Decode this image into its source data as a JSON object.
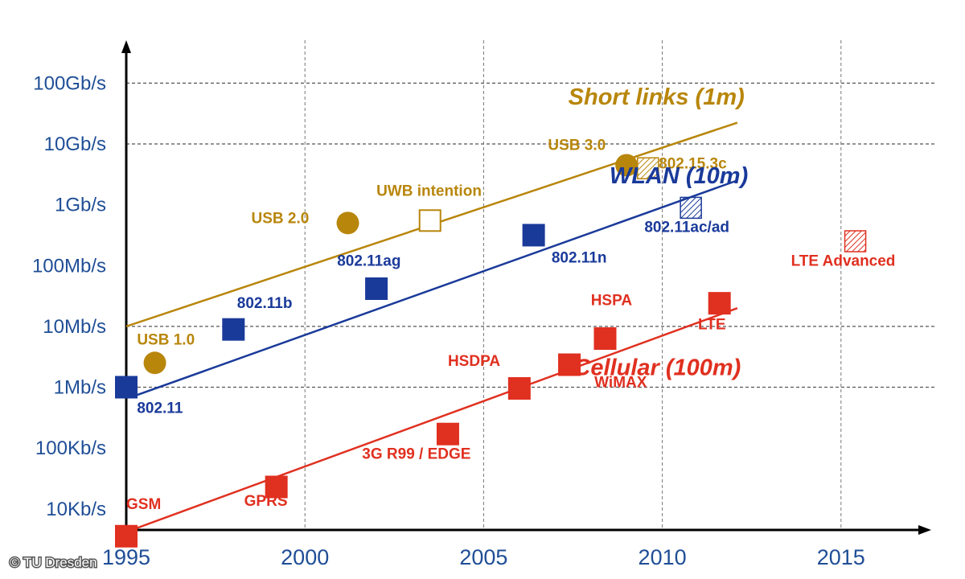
{
  "chart_data": {
    "type": "scatter",
    "title": "",
    "xlabel": "",
    "ylabel": "",
    "y_scale": "log10 (bit/s)",
    "xlim": [
      1995,
      2017.3
    ],
    "ylim": [
      3.6,
      11.6
    ],
    "x_ticks": [
      {
        "value": 1995,
        "label": "1995"
      },
      {
        "value": 2000,
        "label": "2000"
      },
      {
        "value": 2005,
        "label": "2005"
      },
      {
        "value": 2010,
        "label": "2010"
      },
      {
        "value": 2015,
        "label": "2015"
      }
    ],
    "y_ticks": [
      {
        "value": 4,
        "label": "10Kb/s"
      },
      {
        "value": 5,
        "label": "100Kb/s"
      },
      {
        "value": 6,
        "label": "1Mb/s"
      },
      {
        "value": 7,
        "label": "10Mb/s"
      },
      {
        "value": 8,
        "label": "100Mb/s"
      },
      {
        "value": 9,
        "label": "1Gb/s"
      },
      {
        "value": 10,
        "label": "10Gb/s"
      },
      {
        "value": 11,
        "label": "100Gb/s"
      }
    ],
    "h_dashed_at": [
      6,
      7,
      10,
      11
    ],
    "v_dashed_at": [
      2000,
      2005,
      2010,
      2015
    ],
    "series": [
      {
        "name": "Short links (1m)",
        "color": "#b8860b",
        "trend": {
          "x1": 1995,
          "y1": 7.0,
          "x2": 2012.1,
          "y2": 10.35
        },
        "label": {
          "x": 2012.3,
          "y": 10.65
        },
        "points": [
          {
            "x": 1995.8,
            "y": 6.4,
            "label": "USB 1.0",
            "marker": "circle",
            "lx": 1995.3,
            "ly": 6.7
          },
          {
            "x": 2001.2,
            "y": 8.7,
            "label": "USB 2.0",
            "marker": "circle",
            "lx": 1998.5,
            "ly": 8.7
          },
          {
            "x": 2003.5,
            "y": 8.74,
            "label": "UWB intention",
            "marker": "open-square",
            "lx": 2002.0,
            "ly": 9.15
          },
          {
            "x": 2009.0,
            "y": 9.65,
            "label": "USB 3.0",
            "marker": "circle",
            "lx": 2006.8,
            "ly": 9.9
          },
          {
            "x": 2009.6,
            "y": 9.6,
            "label": "802.15.3c",
            "marker": "hatched-square",
            "lx": 2009.9,
            "ly": 9.6
          }
        ]
      },
      {
        "name": "WLAN (10m)",
        "color": "#1a3a9a",
        "trend": {
          "x1": 1995.2,
          "y1": 5.85,
          "x2": 2012.1,
          "y2": 9.4
        },
        "label": {
          "x": 2012.4,
          "y": 9.35
        },
        "points": [
          {
            "x": 1995.0,
            "y": 6.0,
            "label": "802.11",
            "marker": "square",
            "lx": 1995.3,
            "ly": 5.58
          },
          {
            "x": 1998.0,
            "y": 6.95,
            "label": "802.11b",
            "marker": "square",
            "lx": 1998.1,
            "ly": 7.3
          },
          {
            "x": 2002.0,
            "y": 7.62,
            "label": "802.11ag",
            "marker": "square",
            "lx": 2000.9,
            "ly": 8.0
          },
          {
            "x": 2006.4,
            "y": 8.5,
            "label": "802.11n",
            "marker": "square",
            "lx": 2006.9,
            "ly": 8.05
          },
          {
            "x": 2010.8,
            "y": 8.95,
            "label": "802.11ac/ad",
            "marker": "hatched-square",
            "lx": 2009.5,
            "ly": 8.55
          }
        ]
      },
      {
        "name": "Cellular (100m)",
        "color": "#e03020",
        "trend": {
          "x1": 1995,
          "y1": 3.62,
          "x2": 2012.1,
          "y2": 7.3
        },
        "label": {
          "x": 2012.2,
          "y": 6.2
        },
        "points": [
          {
            "x": 1995.0,
            "y": 3.55,
            "label": "GSM",
            "marker": "square",
            "lx": 1995.0,
            "ly": 4.0
          },
          {
            "x": 1999.2,
            "y": 4.36,
            "label": "GPRS",
            "marker": "square",
            "lx": 1998.3,
            "ly": 4.05
          },
          {
            "x": 2004.0,
            "y": 5.23,
            "label": "3G R99 / EDGE",
            "marker": "square",
            "lx": 2001.6,
            "ly": 4.82
          },
          {
            "x": 2006.0,
            "y": 5.98,
            "label": "HSDPA",
            "marker": "square",
            "lx": 2004.0,
            "ly": 6.35
          },
          {
            "x": 2007.4,
            "y": 6.37,
            "label": "WiMAX",
            "marker": "square",
            "lx": 2008.1,
            "ly": 6.0
          },
          {
            "x": 2008.4,
            "y": 6.8,
            "label": "HSPA",
            "marker": "square",
            "lx": 2008.0,
            "ly": 7.35
          },
          {
            "x": 2011.6,
            "y": 7.38,
            "label": "LTE",
            "marker": "square",
            "lx": 2011.0,
            "ly": 6.95
          },
          {
            "x": 2015.4,
            "y": 8.4,
            "label": "LTE Advanced",
            "marker": "hatched-square",
            "lx": 2013.6,
            "ly": 8.0
          }
        ]
      }
    ]
  },
  "credit": "© TU Dresden"
}
